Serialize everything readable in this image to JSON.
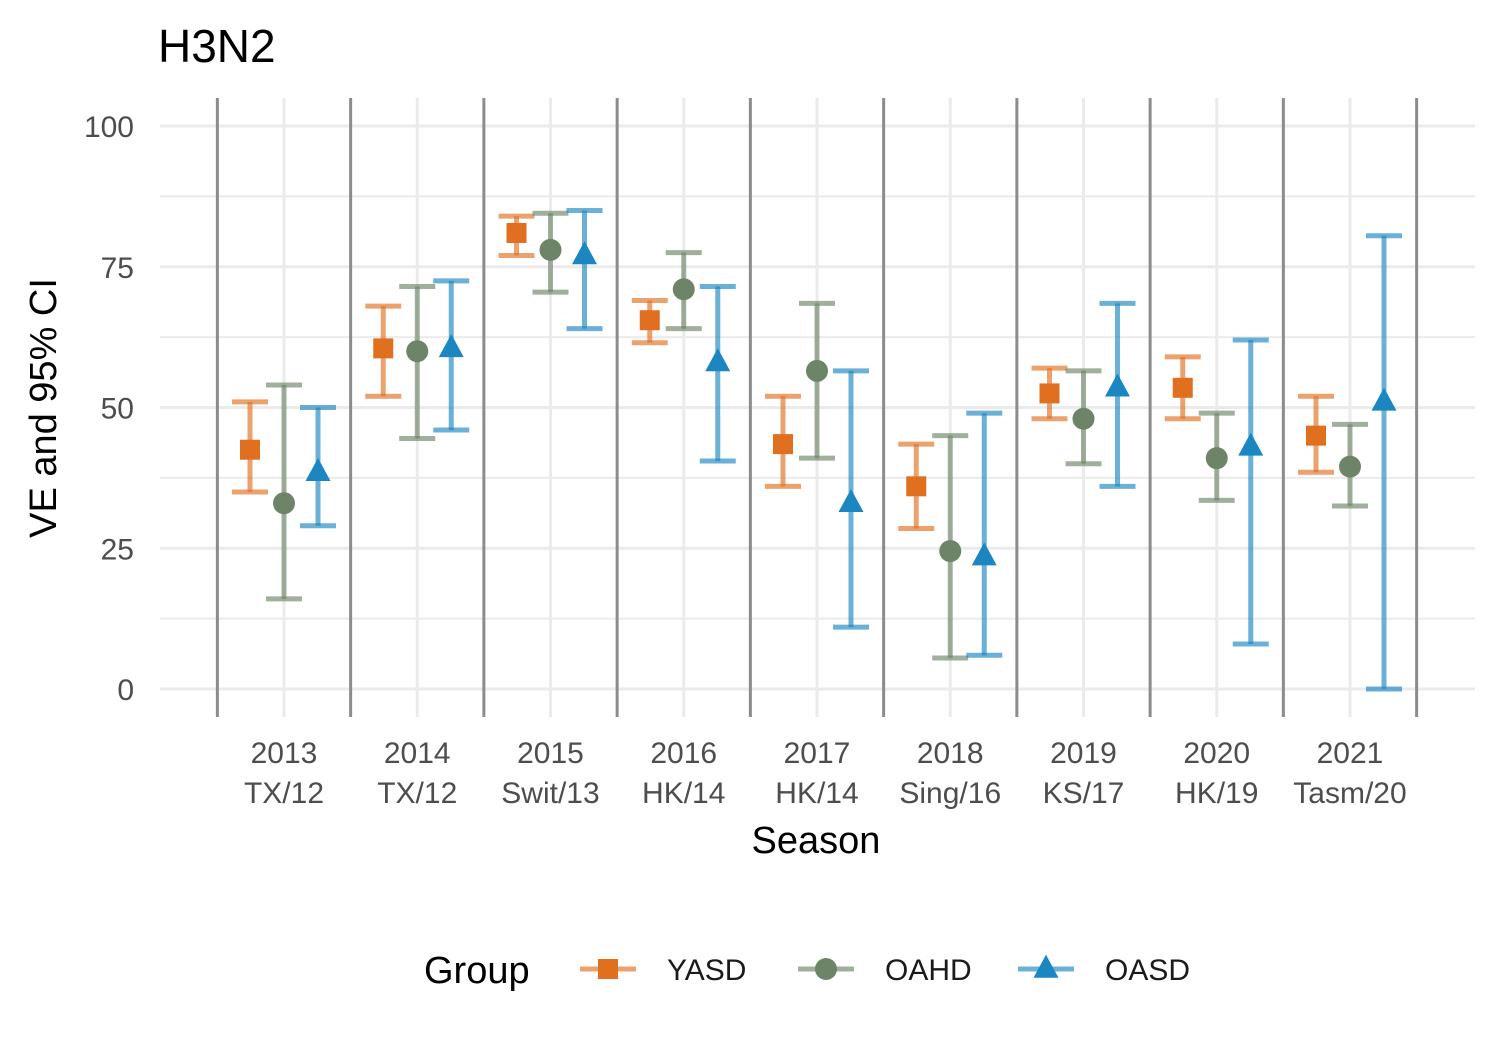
{
  "chart_data": {
    "type": "scatter",
    "title": "H3N2",
    "xlabel": "Season",
    "ylabel": "VE and 95% CI",
    "ylim": [
      -5,
      105
    ],
    "yticks": [
      0,
      25,
      50,
      75,
      100
    ],
    "grid": true,
    "legend_position": "bottom",
    "legend_title": "Group",
    "categories": [
      {
        "line1": "2013",
        "line2": "TX/12"
      },
      {
        "line1": "2014",
        "line2": "TX/12"
      },
      {
        "line1": "2015",
        "line2": "Swit/13"
      },
      {
        "line1": "2016",
        "line2": "HK/14"
      },
      {
        "line1": "2017",
        "line2": "HK/14"
      },
      {
        "line1": "2018",
        "line2": "Sing/16"
      },
      {
        "line1": "2019",
        "line2": "KS/17"
      },
      {
        "line1": "2020",
        "line2": "HK/19"
      },
      {
        "line1": "2021",
        "line2": "Tasm/20"
      }
    ],
    "series": [
      {
        "name": "YASD",
        "color": "#E07020",
        "marker": "square",
        "estimate": [
          42.5,
          60.5,
          81,
          65.5,
          43.5,
          36,
          52.5,
          53.5,
          45
        ],
        "lower": [
          35,
          52,
          77,
          61.5,
          36,
          28.5,
          48,
          48,
          38.5
        ],
        "upper": [
          51,
          68,
          84,
          69,
          52,
          43.5,
          57,
          59,
          52
        ]
      },
      {
        "name": "OAHD",
        "color": "#6E8468",
        "marker": "circle",
        "estimate": [
          33,
          60,
          78,
          71,
          56.5,
          24.5,
          48,
          41,
          39.5
        ],
        "lower": [
          16,
          44.5,
          70.5,
          64,
          41,
          5.5,
          40,
          33.5,
          32.5
        ],
        "upper": [
          54,
          71.5,
          84.5,
          77.5,
          68.5,
          45,
          56.5,
          49,
          47
        ]
      },
      {
        "name": "OASD",
        "color": "#1C86C0",
        "marker": "triangle",
        "estimate": [
          38.5,
          60.5,
          77,
          58,
          33,
          23.5,
          53.5,
          43,
          51
        ],
        "lower": [
          29,
          46,
          64,
          40.5,
          11,
          6,
          36,
          8,
          0
        ],
        "upper": [
          50,
          72.5,
          85,
          71.5,
          56.5,
          49,
          68.5,
          62,
          80.5
        ]
      }
    ]
  }
}
